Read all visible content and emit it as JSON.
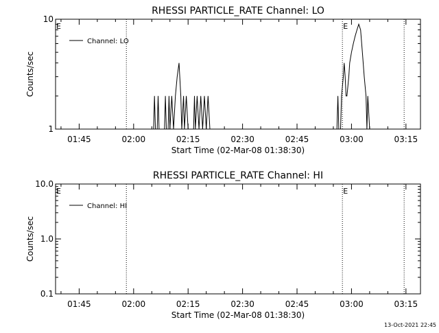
{
  "footer_timestamp": "13-Oct-2021 22:45",
  "chart_data": [
    {
      "type": "line",
      "title": "RHESSI PARTICLE_RATE Channel: LO",
      "xlabel": "Start Time (02-Mar-08 01:38:30)",
      "ylabel": "Counts/sec",
      "yscale": "log",
      "ylim": [
        1,
        10
      ],
      "xlim": [
        "01:38:30",
        "03:19:00"
      ],
      "x_ticks": [
        "01:45",
        "02:00",
        "02:15",
        "02:30",
        "02:45",
        "03:00",
        "03:15"
      ],
      "y_ticks": [
        "1",
        "10"
      ],
      "legend": "top-left",
      "series": [
        {
          "name": "Channel: LO",
          "points": [
            [
              "02:05:30",
              1
            ],
            [
              "02:05:45",
              2
            ],
            [
              "02:06:00",
              1
            ],
            [
              "02:06:30",
              1
            ],
            [
              "02:06:45",
              2
            ],
            [
              "02:07:00",
              1
            ],
            [
              "02:08:30",
              1
            ],
            [
              "02:08:45",
              2
            ],
            [
              "02:09:00",
              1
            ],
            [
              "02:09:30",
              1
            ],
            [
              "02:09:45",
              2
            ],
            [
              "02:10:00",
              1
            ],
            [
              "02:10:30",
              2
            ],
            [
              "02:11:00",
              1
            ],
            [
              "02:11:30",
              2
            ],
            [
              "02:12:00",
              3
            ],
            [
              "02:12:30",
              4
            ],
            [
              "02:13:00",
              2
            ],
            [
              "02:13:15",
              1
            ],
            [
              "02:13:45",
              2
            ],
            [
              "02:14:00",
              1
            ],
            [
              "02:14:30",
              2
            ],
            [
              "02:15:00",
              1
            ],
            [
              "02:16:30",
              1
            ],
            [
              "02:16:45",
              2
            ],
            [
              "02:17:00",
              1
            ],
            [
              "02:17:30",
              2
            ],
            [
              "02:18:00",
              1
            ],
            [
              "02:18:30",
              2
            ],
            [
              "02:19:00",
              1
            ],
            [
              "02:19:30",
              2
            ],
            [
              "02:20:00",
              1
            ],
            [
              "02:20:30",
              2
            ],
            [
              "02:21:00",
              1
            ],
            [
              "02:56:00",
              1
            ],
            [
              "02:56:15",
              2
            ],
            [
              "02:56:30",
              1
            ],
            [
              "02:57:00",
              1
            ],
            [
              "02:57:15",
              2
            ],
            [
              "02:57:45",
              3
            ],
            [
              "02:58:00",
              4
            ],
            [
              "02:58:15",
              3
            ],
            [
              "02:58:30",
              2
            ],
            [
              "02:58:45",
              2
            ],
            [
              "02:59:15",
              3
            ],
            [
              "02:59:30",
              4
            ],
            [
              "03:00:00",
              5
            ],
            [
              "03:00:30",
              6
            ],
            [
              "03:01:00",
              7
            ],
            [
              "03:01:30",
              8
            ],
            [
              "03:02:00",
              9
            ],
            [
              "03:02:30",
              8
            ],
            [
              "03:03:00",
              5
            ],
            [
              "03:03:30",
              3
            ],
            [
              "03:04:00",
              2
            ],
            [
              "03:04:15",
              1
            ],
            [
              "03:04:30",
              2
            ],
            [
              "03:05:00",
              1
            ]
          ]
        }
      ],
      "events": [
        {
          "time": "01:58:00",
          "label": ""
        },
        {
          "time": "02:57:30",
          "label": "E"
        },
        {
          "time": "03:14:30",
          "label": ""
        }
      ],
      "start_flag": "E"
    },
    {
      "type": "line",
      "title": "RHESSI PARTICLE_RATE Channel: HI",
      "xlabel": "Start Time (02-Mar-08 01:38:30)",
      "ylabel": "Counts/sec",
      "yscale": "log",
      "ylim": [
        0.1,
        10
      ],
      "xlim": [
        "01:38:30",
        "03:19:00"
      ],
      "x_ticks": [
        "01:45",
        "02:00",
        "02:15",
        "02:30",
        "02:45",
        "03:00",
        "03:15"
      ],
      "y_ticks": [
        "0.1",
        "1.0",
        "10.0"
      ],
      "legend": "top-left",
      "series": [
        {
          "name": "Channel: HI",
          "points": []
        }
      ],
      "events": [
        {
          "time": "01:58:00",
          "label": ""
        },
        {
          "time": "02:57:30",
          "label": "E"
        },
        {
          "time": "03:14:30",
          "label": ""
        }
      ],
      "start_flag": "E"
    }
  ]
}
